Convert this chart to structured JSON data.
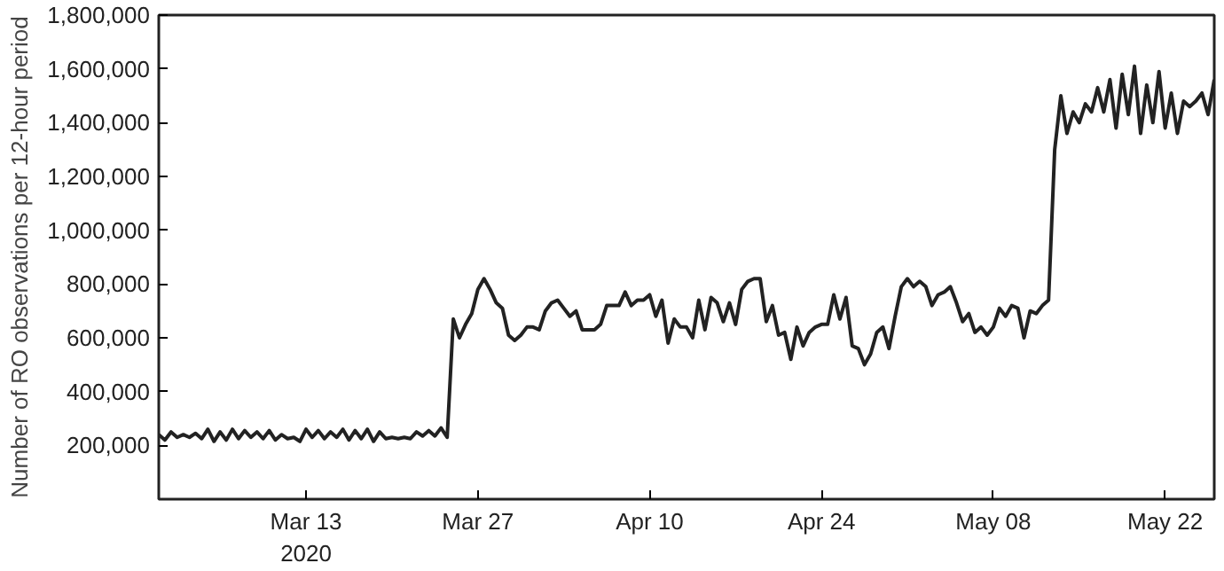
{
  "chart_data": {
    "type": "line",
    "ylabel": "Number of RO observations per 12-hour period",
    "x": [
      "2020-03-01T00:00",
      "2020-03-01T12:00",
      "2020-03-02T00:00",
      "2020-03-02T12:00",
      "2020-03-03T00:00",
      "2020-03-03T12:00",
      "2020-03-04T00:00",
      "2020-03-04T12:00",
      "2020-03-05T00:00",
      "2020-03-05T12:00",
      "2020-03-06T00:00",
      "2020-03-06T12:00",
      "2020-03-07T00:00",
      "2020-03-07T12:00",
      "2020-03-08T00:00",
      "2020-03-08T12:00",
      "2020-03-09T00:00",
      "2020-03-09T12:00",
      "2020-03-10T00:00",
      "2020-03-10T12:00",
      "2020-03-11T00:00",
      "2020-03-11T12:00",
      "2020-03-12T00:00",
      "2020-03-12T12:00",
      "2020-03-13T00:00",
      "2020-03-13T12:00",
      "2020-03-14T00:00",
      "2020-03-14T12:00",
      "2020-03-15T00:00",
      "2020-03-15T12:00",
      "2020-03-16T00:00",
      "2020-03-16T12:00",
      "2020-03-17T00:00",
      "2020-03-17T12:00",
      "2020-03-18T00:00",
      "2020-03-18T12:00",
      "2020-03-19T00:00",
      "2020-03-19T12:00",
      "2020-03-20T00:00",
      "2020-03-20T12:00",
      "2020-03-21T00:00",
      "2020-03-21T12:00",
      "2020-03-22T00:00",
      "2020-03-22T12:00",
      "2020-03-23T00:00",
      "2020-03-23T12:00",
      "2020-03-24T00:00",
      "2020-03-24T12:00",
      "2020-03-25T00:00",
      "2020-03-25T12:00",
      "2020-03-26T00:00",
      "2020-03-26T12:00",
      "2020-03-27T00:00",
      "2020-03-27T12:00",
      "2020-03-28T00:00",
      "2020-03-28T12:00",
      "2020-03-29T00:00",
      "2020-03-29T12:00",
      "2020-03-30T00:00",
      "2020-03-30T12:00",
      "2020-03-31T00:00",
      "2020-03-31T12:00",
      "2020-04-01T00:00",
      "2020-04-01T12:00",
      "2020-04-02T00:00",
      "2020-04-02T12:00",
      "2020-04-03T00:00",
      "2020-04-03T12:00",
      "2020-04-04T00:00",
      "2020-04-04T12:00",
      "2020-04-05T00:00",
      "2020-04-05T12:00",
      "2020-04-06T00:00",
      "2020-04-06T12:00",
      "2020-04-07T00:00",
      "2020-04-07T12:00",
      "2020-04-08T00:00",
      "2020-04-08T12:00",
      "2020-04-09T00:00",
      "2020-04-09T12:00",
      "2020-04-10T00:00",
      "2020-04-10T12:00",
      "2020-04-11T00:00",
      "2020-04-11T12:00",
      "2020-04-12T00:00",
      "2020-04-12T12:00",
      "2020-04-13T00:00",
      "2020-04-13T12:00",
      "2020-04-14T00:00",
      "2020-04-14T12:00",
      "2020-04-15T00:00",
      "2020-04-15T12:00",
      "2020-04-16T00:00",
      "2020-04-16T12:00",
      "2020-04-17T00:00",
      "2020-04-17T12:00",
      "2020-04-18T00:00",
      "2020-04-18T12:00",
      "2020-04-19T00:00",
      "2020-04-19T12:00",
      "2020-04-20T00:00",
      "2020-04-20T12:00",
      "2020-04-21T00:00",
      "2020-04-21T12:00",
      "2020-04-22T00:00",
      "2020-04-22T12:00",
      "2020-04-23T00:00",
      "2020-04-23T12:00",
      "2020-04-24T00:00",
      "2020-04-24T12:00",
      "2020-04-25T00:00",
      "2020-04-25T12:00",
      "2020-04-26T00:00",
      "2020-04-26T12:00",
      "2020-04-27T00:00",
      "2020-04-27T12:00",
      "2020-04-28T00:00",
      "2020-04-28T12:00",
      "2020-04-29T00:00",
      "2020-04-29T12:00",
      "2020-04-30T00:00",
      "2020-04-30T12:00",
      "2020-05-01T00:00",
      "2020-05-01T12:00",
      "2020-05-02T00:00",
      "2020-05-02T12:00",
      "2020-05-03T00:00",
      "2020-05-03T12:00",
      "2020-05-04T00:00",
      "2020-05-04T12:00",
      "2020-05-05T00:00",
      "2020-05-05T12:00",
      "2020-05-06T00:00",
      "2020-05-06T12:00",
      "2020-05-07T00:00",
      "2020-05-07T12:00",
      "2020-05-08T00:00",
      "2020-05-08T12:00",
      "2020-05-09T00:00",
      "2020-05-09T12:00",
      "2020-05-10T00:00",
      "2020-05-10T12:00",
      "2020-05-11T00:00",
      "2020-05-11T12:00",
      "2020-05-12T00:00",
      "2020-05-12T12:00",
      "2020-05-13T00:00",
      "2020-05-13T12:00",
      "2020-05-14T00:00",
      "2020-05-14T12:00",
      "2020-05-15T00:00",
      "2020-05-15T12:00",
      "2020-05-16T00:00",
      "2020-05-16T12:00",
      "2020-05-17T00:00",
      "2020-05-17T12:00",
      "2020-05-18T00:00",
      "2020-05-18T12:00",
      "2020-05-19T00:00",
      "2020-05-19T12:00",
      "2020-05-20T00:00",
      "2020-05-20T12:00",
      "2020-05-21T00:00",
      "2020-05-21T12:00",
      "2020-05-22T00:00",
      "2020-05-22T12:00",
      "2020-05-23T00:00",
      "2020-05-23T12:00",
      "2020-05-24T00:00",
      "2020-05-24T12:00",
      "2020-05-25T00:00",
      "2020-05-25T12:00",
      "2020-05-26T00:00"
    ],
    "series": [
      {
        "color": "#222222",
        "values": [
          240000,
          220000,
          250000,
          230000,
          240000,
          230000,
          245000,
          225000,
          260000,
          215000,
          250000,
          220000,
          260000,
          225000,
          255000,
          230000,
          250000,
          225000,
          255000,
          220000,
          240000,
          225000,
          230000,
          215000,
          260000,
          230000,
          255000,
          225000,
          250000,
          230000,
          260000,
          220000,
          255000,
          225000,
          260000,
          215000,
          250000,
          225000,
          230000,
          225000,
          230000,
          225000,
          250000,
          235000,
          255000,
          235000,
          265000,
          230000,
          670000,
          600000,
          650000,
          690000,
          780000,
          820000,
          780000,
          730000,
          710000,
          610000,
          590000,
          610000,
          640000,
          640000,
          630000,
          700000,
          730000,
          740000,
          710000,
          680000,
          700000,
          630000,
          630000,
          630000,
          650000,
          720000,
          720000,
          720000,
          770000,
          720000,
          740000,
          740000,
          760000,
          680000,
          740000,
          580000,
          670000,
          640000,
          640000,
          600000,
          740000,
          630000,
          750000,
          730000,
          660000,
          730000,
          650000,
          780000,
          810000,
          820000,
          820000,
          660000,
          720000,
          610000,
          620000,
          520000,
          640000,
          570000,
          620000,
          640000,
          650000,
          650000,
          760000,
          670000,
          750000,
          570000,
          560000,
          500000,
          540000,
          620000,
          640000,
          560000,
          680000,
          790000,
          820000,
          790000,
          810000,
          790000,
          720000,
          760000,
          770000,
          790000,
          730000,
          660000,
          690000,
          620000,
          640000,
          610000,
          640000,
          710000,
          680000,
          720000,
          710000,
          600000,
          700000,
          690000,
          720000,
          740000,
          1300000,
          1500000,
          1360000,
          1440000,
          1400000,
          1470000,
          1440000,
          1530000,
          1440000,
          1560000,
          1380000,
          1580000,
          1430000,
          1610000,
          1360000,
          1540000,
          1400000,
          1590000,
          1380000,
          1510000,
          1360000,
          1480000,
          1460000,
          1480000,
          1510000,
          1430000,
          1560000
        ]
      }
    ],
    "xlim": [
      "2020-03-01T00:00",
      "2020-05-26T00:00"
    ],
    "xticks": [
      {
        "value": "2020-03-13",
        "label": "Mar 13\n2020"
      },
      {
        "value": "2020-03-27",
        "label": "Mar 27"
      },
      {
        "value": "2020-04-10",
        "label": "Apr 10"
      },
      {
        "value": "2020-04-24",
        "label": "Apr 24"
      },
      {
        "value": "2020-05-08",
        "label": "May 08"
      },
      {
        "value": "2020-05-22",
        "label": "May 22"
      }
    ],
    "ylim": [
      0,
      1800000
    ],
    "yticks": [
      {
        "value": 200000,
        "label": "200,000"
      },
      {
        "value": 400000,
        "label": "400,000"
      },
      {
        "value": 600000,
        "label": "600,000"
      },
      {
        "value": 800000,
        "label": "800,000"
      },
      {
        "value": 1000000,
        "label": "1,000,000"
      },
      {
        "value": 1200000,
        "label": "1,200,000"
      },
      {
        "value": 1400000,
        "label": "1,400,000"
      },
      {
        "value": 1600000,
        "label": "1,600,000"
      },
      {
        "value": 1800000,
        "label": "1,800,000"
      }
    ],
    "grid": false,
    "marker": "none",
    "line_style": "solid"
  }
}
